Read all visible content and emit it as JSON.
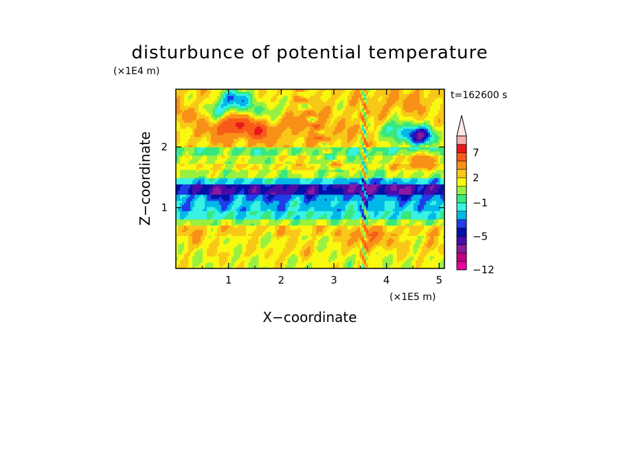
{
  "chart_data": {
    "type": "heatmap",
    "title": "disturbunce of potential temperature",
    "xlabel": "X−coordinate",
    "ylabel": "Z−coordinate",
    "x_unit": "(×1E5 m)",
    "y_unit": "(×1E4 m)",
    "time_label": "t=162600 s",
    "xlim": [
      0,
      5.1
    ],
    "ylim": [
      0,
      2.95
    ],
    "x_ticks": [
      1,
      2,
      3,
      4,
      5
    ],
    "y_ticks": [
      1,
      2
    ],
    "x_tick_labels": [
      "1",
      "2",
      "3",
      "4",
      "5"
    ],
    "y_tick_labels": [
      "1",
      "2"
    ],
    "grid": false,
    "colorbar": {
      "extend_top": true,
      "levels": [
        -12,
        -10,
        -8,
        -6,
        -5,
        -4,
        -3,
        -2,
        -1,
        0,
        1,
        2,
        3,
        5,
        7,
        9,
        11
      ],
      "colors": [
        "#e8009e",
        "#c0007c",
        "#8a1aa0",
        "#4a0ca8",
        "#0010a8",
        "#1e3ce8",
        "#00b8e8",
        "#38f2e4",
        "#38e87c",
        "#98f040",
        "#f8f810",
        "#f8c818",
        "#f89018",
        "#f85a1a",
        "#e81818",
        "#f4b0b0",
        "#ffe8e8"
      ],
      "tick_values": [
        -12,
        -5,
        -1,
        2,
        7
      ],
      "tick_labels": [
        "−12",
        "−5",
        "−1",
        "2",
        "7"
      ]
    },
    "features": [
      {
        "x": 1.15,
        "z": 2.8,
        "value": -7
      },
      {
        "x": 0.85,
        "z": 2.6,
        "value": -4
      },
      {
        "x": 1.7,
        "z": 2.6,
        "value": -3
      },
      {
        "x": 0.9,
        "z": 2.3,
        "value": 5
      },
      {
        "x": 1.2,
        "z": 2.4,
        "value": 7
      },
      {
        "x": 1.65,
        "z": 2.25,
        "value": 7
      },
      {
        "x": 0.25,
        "z": 2.55,
        "value": 3
      },
      {
        "x": 2.45,
        "z": 2.45,
        "value": 4
      },
      {
        "x": 2.8,
        "z": 2.2,
        "value": 3
      },
      {
        "x": 3.55,
        "z": 2.35,
        "value": 2
      },
      {
        "x": 4.1,
        "z": 2.3,
        "value": -4
      },
      {
        "x": 4.55,
        "z": 2.15,
        "value": -6
      },
      {
        "x": 4.7,
        "z": 2.22,
        "value": -5
      },
      {
        "x": 4.6,
        "z": 1.8,
        "value": 6
      },
      {
        "x": 3.95,
        "z": 2.7,
        "value": 2
      },
      {
        "x": 4.5,
        "z": 2.75,
        "value": 3
      },
      {
        "x": 2.35,
        "z": 1.85,
        "value": 2
      },
      {
        "x": 0.85,
        "z": 1.85,
        "value": 1
      },
      {
        "x": 0.8,
        "z": 1.45,
        "value": -1
      },
      {
        "x": 0.9,
        "z": 1.25,
        "value": -4
      },
      {
        "x": 1.9,
        "z": 1.25,
        "value": -4
      },
      {
        "x": 2.7,
        "z": 1.3,
        "value": -3
      },
      {
        "x": 3.6,
        "z": 1.35,
        "value": -5
      },
      {
        "x": 4.3,
        "z": 1.3,
        "value": -4
      },
      {
        "x": 4.85,
        "z": 1.25,
        "value": -3
      },
      {
        "x": 2.5,
        "z": 0.7,
        "value": 1
      },
      {
        "x": 0.4,
        "z": 0.5,
        "value": 2
      },
      {
        "x": 2.2,
        "z": 0.3,
        "value": 2
      },
      {
        "x": 1.0,
        "z": 0.2,
        "value": 1
      },
      {
        "x": 3.6,
        "z": 0.5,
        "value": 5
      },
      {
        "x": 4.0,
        "z": 0.45,
        "value": 2
      },
      {
        "x": 4.8,
        "z": 0.35,
        "value": 2
      }
    ]
  }
}
